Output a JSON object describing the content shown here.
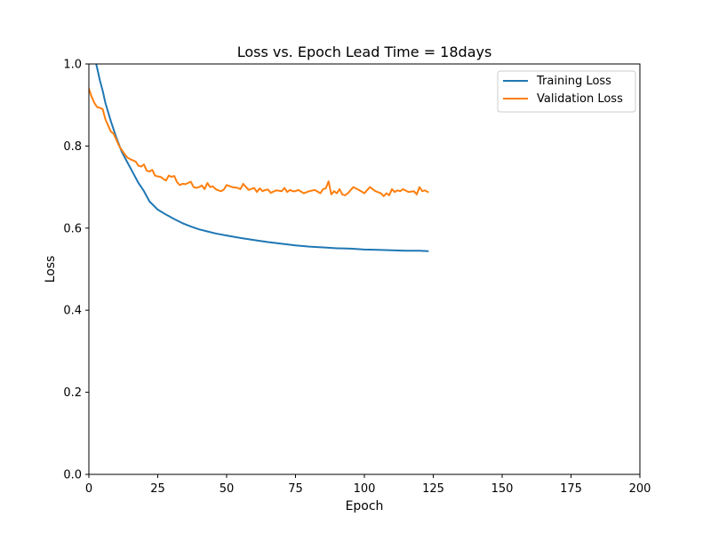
{
  "chart_data": {
    "type": "line",
    "title": "Loss vs. Epoch   Lead Time = 18days",
    "xlabel": "Epoch",
    "ylabel": "Loss",
    "xlim": [
      0,
      200
    ],
    "ylim": [
      0,
      1.0
    ],
    "xticks": [
      "0",
      "25",
      "50",
      "75",
      "100",
      "125",
      "150",
      "175",
      "200"
    ],
    "yticks": [
      "0.0",
      "0.2",
      "0.4",
      "0.6",
      "0.8",
      "1.0"
    ],
    "grid": false,
    "legend_position": "top-right",
    "series": [
      {
        "name": "Training Loss",
        "color": "#1f77b4",
        "x": [
          0,
          1,
          2,
          3,
          4,
          5,
          6,
          8,
          10,
          12,
          14,
          16,
          18,
          20,
          22,
          25,
          28,
          31,
          34,
          37,
          40,
          43,
          46,
          50,
          55,
          60,
          65,
          70,
          75,
          80,
          85,
          90,
          95,
          100,
          105,
          110,
          115,
          120,
          123
        ],
        "y": [
          1.08,
          1.05,
          1.02,
          0.99,
          0.96,
          0.935,
          0.905,
          0.86,
          0.82,
          0.785,
          0.76,
          0.735,
          0.71,
          0.69,
          0.665,
          0.645,
          0.633,
          0.622,
          0.612,
          0.604,
          0.597,
          0.592,
          0.587,
          0.582,
          0.576,
          0.571,
          0.566,
          0.562,
          0.558,
          0.555,
          0.553,
          0.551,
          0.55,
          0.548,
          0.547,
          0.546,
          0.545,
          0.545,
          0.544
        ]
      },
      {
        "name": "Validation Loss",
        "color": "#ff7f0e",
        "x": [
          0,
          1,
          2,
          3,
          4,
          5,
          6,
          7,
          8,
          9,
          10,
          11,
          12,
          13,
          14,
          15,
          16,
          17,
          18,
          19,
          20,
          21,
          22,
          23,
          24,
          25,
          26,
          27,
          28,
          29,
          30,
          31,
          32,
          33,
          34,
          35,
          36,
          37,
          38,
          39,
          40,
          41,
          42,
          43,
          44,
          45,
          46,
          47,
          48,
          49,
          50,
          52,
          54,
          55,
          56,
          58,
          60,
          61,
          62,
          63,
          64,
          65,
          66,
          68,
          70,
          71,
          72,
          73,
          74,
          75,
          76,
          78,
          80,
          82,
          84,
          85,
          86,
          87,
          88,
          89,
          90,
          91,
          92,
          93,
          94,
          96,
          98,
          100,
          102,
          104,
          106,
          107,
          108,
          109,
          110,
          111,
          112,
          113,
          114,
          116,
          118,
          119,
          120,
          121,
          122,
          123
        ],
        "y": [
          0.94,
          0.92,
          0.905,
          0.895,
          0.893,
          0.89,
          0.865,
          0.85,
          0.835,
          0.83,
          0.815,
          0.8,
          0.79,
          0.78,
          0.772,
          0.768,
          0.765,
          0.762,
          0.752,
          0.75,
          0.755,
          0.74,
          0.738,
          0.742,
          0.728,
          0.726,
          0.725,
          0.72,
          0.716,
          0.728,
          0.725,
          0.727,
          0.712,
          0.705,
          0.708,
          0.707,
          0.71,
          0.713,
          0.7,
          0.698,
          0.7,
          0.704,
          0.695,
          0.71,
          0.7,
          0.702,
          0.695,
          0.692,
          0.69,
          0.694,
          0.705,
          0.7,
          0.698,
          0.695,
          0.708,
          0.693,
          0.698,
          0.688,
          0.697,
          0.69,
          0.693,
          0.694,
          0.686,
          0.692,
          0.69,
          0.698,
          0.688,
          0.693,
          0.69,
          0.69,
          0.693,
          0.685,
          0.69,
          0.693,
          0.685,
          0.695,
          0.697,
          0.714,
          0.682,
          0.69,
          0.685,
          0.695,
          0.682,
          0.68,
          0.685,
          0.7,
          0.693,
          0.685,
          0.7,
          0.69,
          0.685,
          0.678,
          0.685,
          0.68,
          0.695,
          0.688,
          0.692,
          0.69,
          0.695,
          0.688,
          0.69,
          0.682,
          0.7,
          0.69,
          0.692,
          0.688
        ]
      }
    ]
  }
}
